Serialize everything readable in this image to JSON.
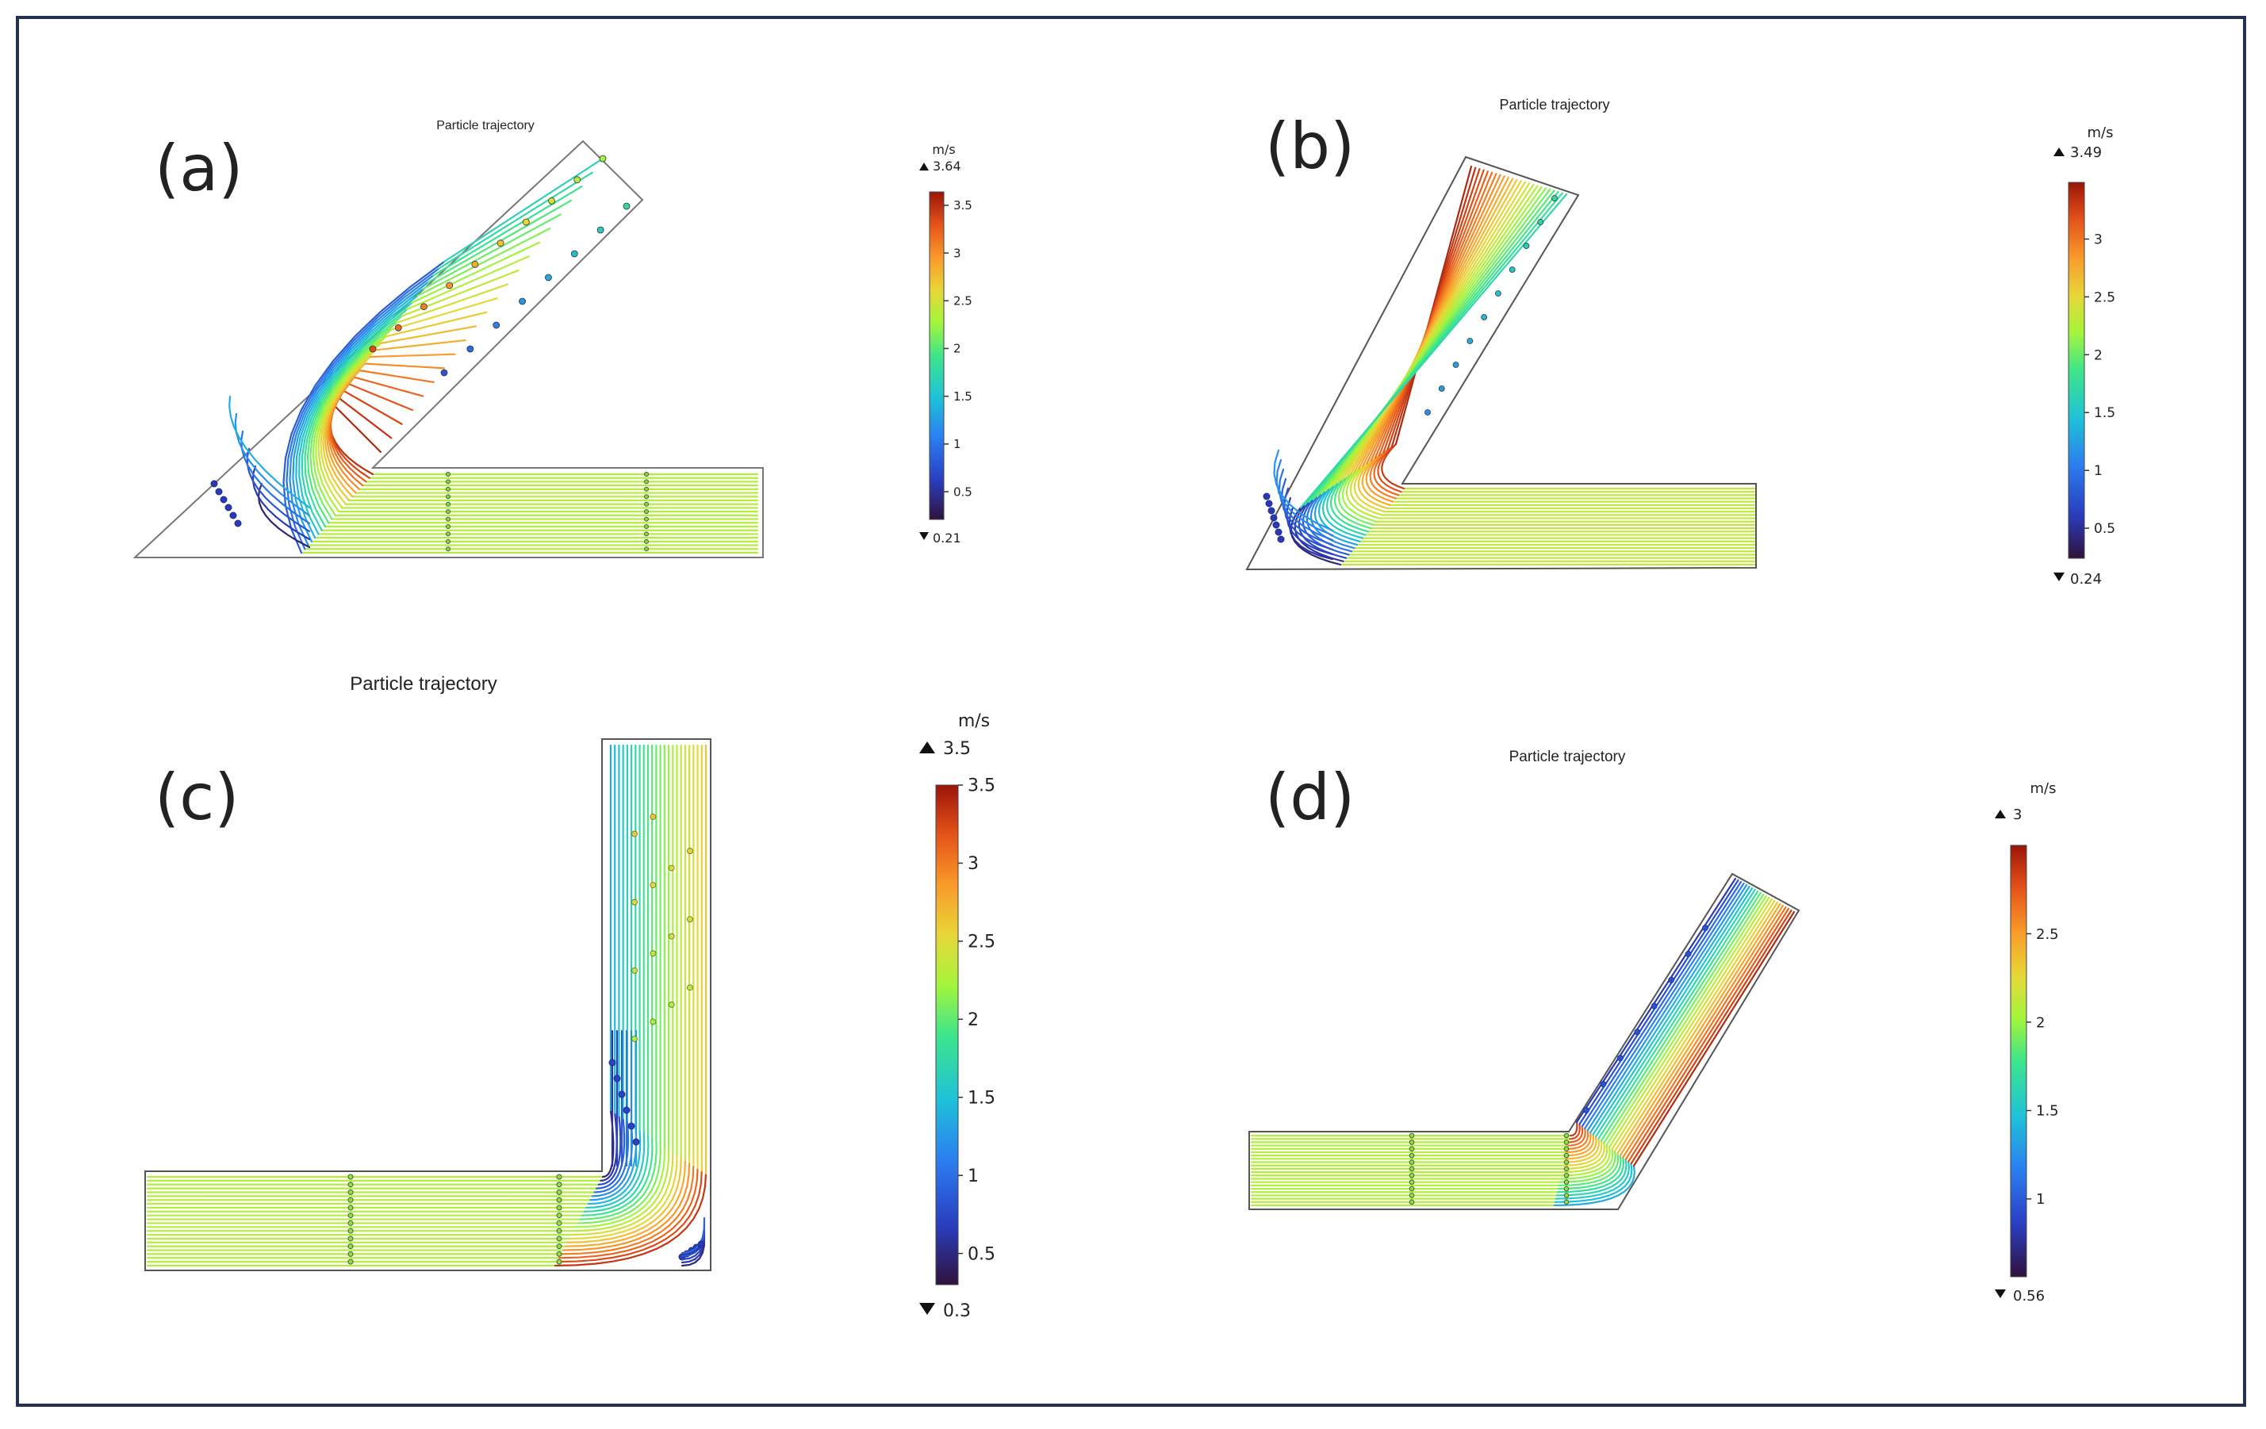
{
  "panels": [
    {
      "id": "a",
      "letter": "(a)",
      "title": "Particle trajectory",
      "unit": "m/s",
      "max_label": "3.64",
      "min_label": "0.21",
      "vmin": 0.21,
      "vmax": 3.64,
      "ticks": [
        "3.5",
        "3",
        "2.5",
        "2",
        "1.5",
        "1",
        "0.5"
      ],
      "tick_values": [
        3.5,
        3,
        2.5,
        2,
        1.5,
        1,
        0.5
      ],
      "bend_angle_deg": 45
    },
    {
      "id": "b",
      "letter": "(b)",
      "title": "Particle trajectory",
      "unit": "m/s",
      "max_label": "3.49",
      "min_label": "0.24",
      "vmin": 0.24,
      "vmax": 3.49,
      "ticks": [
        "3",
        "2.5",
        "2",
        "1.5",
        "1",
        "0.5"
      ],
      "tick_values": [
        3,
        2.5,
        2,
        1.5,
        1,
        0.5
      ],
      "bend_angle_deg": 60
    },
    {
      "id": "c",
      "letter": "(c)",
      "title": "Particle trajectory",
      "unit": "m/s",
      "max_label": "3.5",
      "min_label": "0.3",
      "vmin": 0.3,
      "vmax": 3.5,
      "ticks": [
        "3.5",
        "3",
        "2.5",
        "2",
        "1.5",
        "1",
        "0.5"
      ],
      "tick_values": [
        3.5,
        3,
        2.5,
        2,
        1.5,
        1,
        0.5
      ],
      "bend_angle_deg": 90
    },
    {
      "id": "d",
      "letter": "(d)",
      "title": "Particle trajectory",
      "unit": "m/s",
      "max_label": "3",
      "min_label": "0.56",
      "vmin": 0.56,
      "vmax": 3,
      "ticks": [
        "2.5",
        "2",
        "1.5",
        "1"
      ],
      "tick_values": [
        2.5,
        2,
        1.5,
        1
      ],
      "bend_angle_deg": 120
    }
  ],
  "colormap": [
    "#30123b",
    "#2a3ec0",
    "#2b7ff0",
    "#1fc1d8",
    "#3ee58a",
    "#a4f53c",
    "#e8d638",
    "#f99a2a",
    "#e5531a",
    "#9a1508"
  ]
}
